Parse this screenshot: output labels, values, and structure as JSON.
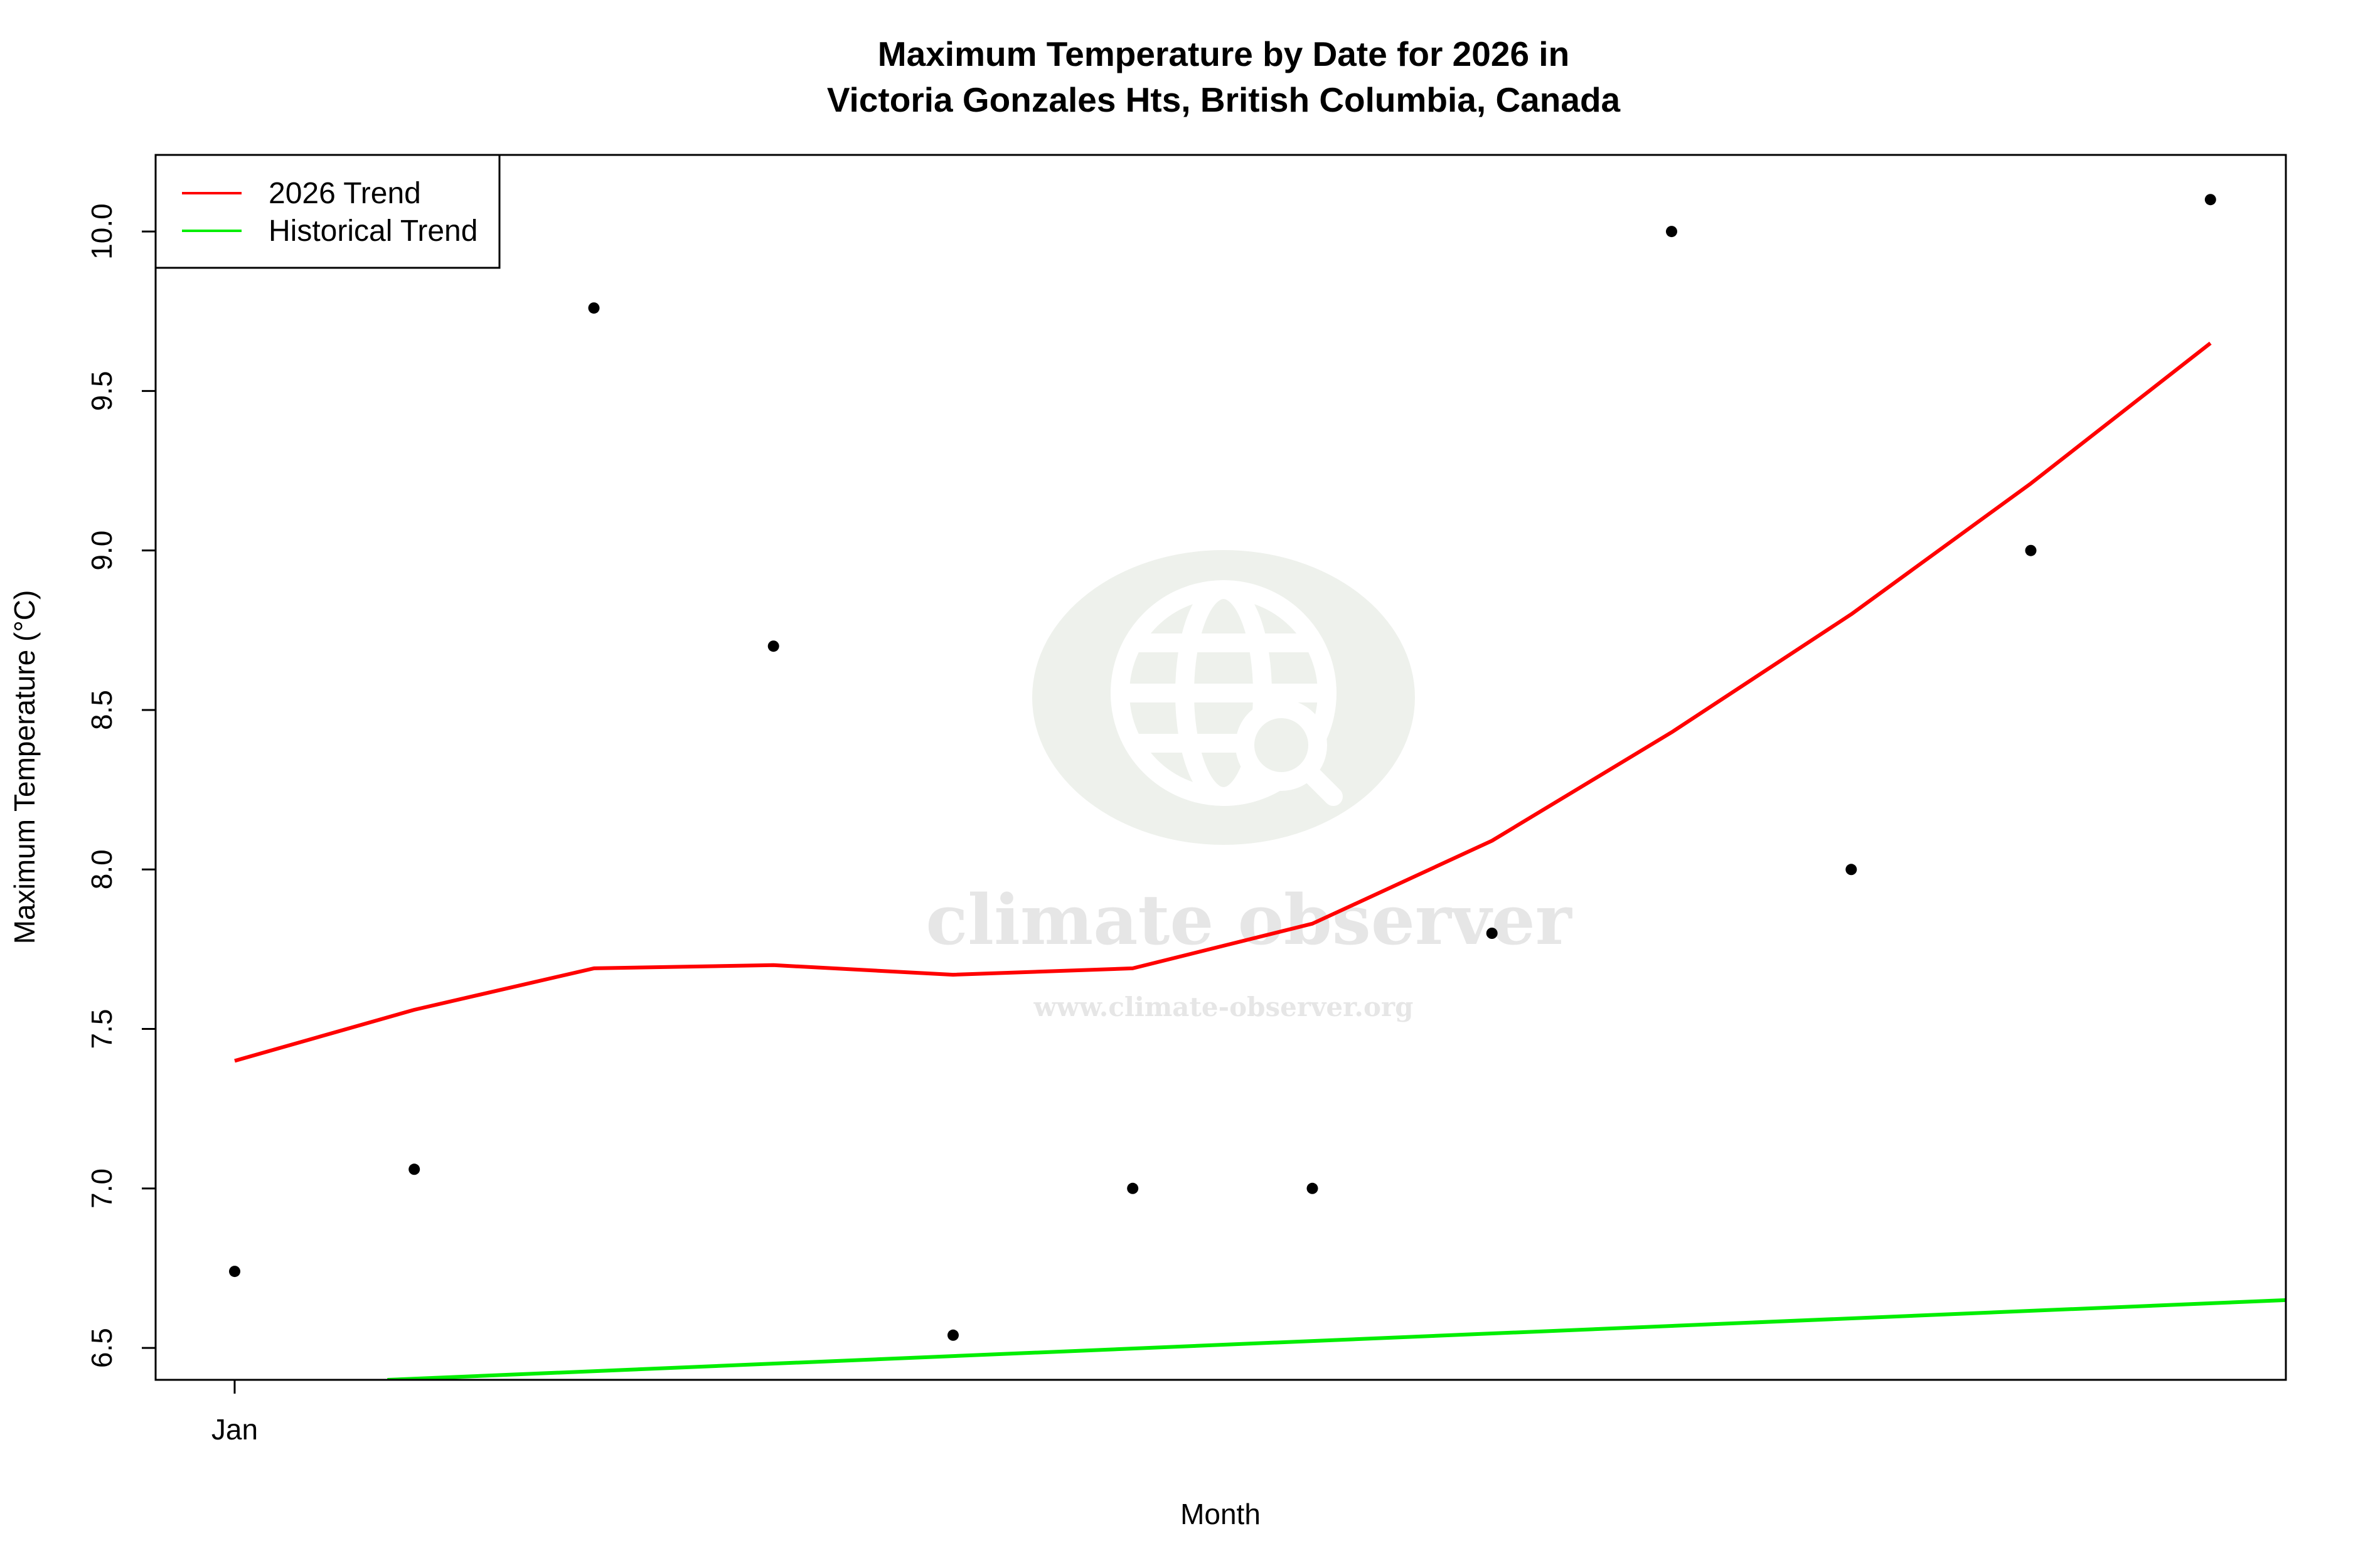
{
  "chart_data": {
    "type": "scatter",
    "title": [
      "Maximum Temperature by Date for 2026 in",
      "Victoria Gonzales Hts, British Columbia, Canada"
    ],
    "xlabel": "Month",
    "ylabel": "Maximum Temperature (°C)",
    "x_ticks": [
      {
        "x": 1,
        "label": "Jan"
      }
    ],
    "xlim": [
      0.56,
      12.42
    ],
    "ylim": [
      6.4,
      10.24
    ],
    "y_ticks": [
      6.5,
      7.0,
      7.5,
      8.0,
      8.5,
      9.0,
      9.5,
      10.0
    ],
    "y_tick_labels": [
      "6.5",
      "7.0",
      "7.5",
      "8.0",
      "8.5",
      "9.0",
      "9.5",
      "10.0"
    ],
    "grid": false,
    "legend_position": "top-left",
    "points": {
      "x": [
        1,
        2,
        3,
        4,
        5,
        6,
        7,
        8,
        9,
        10,
        11,
        12
      ],
      "y": [
        6.74,
        7.06,
        9.76,
        8.7,
        6.54,
        7.0,
        7.0,
        7.8,
        10.0,
        8.0,
        9.0,
        10.1
      ],
      "color": "#000000"
    },
    "series": [
      {
        "name": "2026 Trend",
        "color": "#ff0000",
        "x": [
          1,
          2,
          3,
          4,
          5,
          6,
          7,
          8,
          9,
          10,
          11,
          12
        ],
        "y": [
          7.4,
          7.56,
          7.69,
          7.7,
          7.67,
          7.69,
          7.83,
          8.09,
          8.43,
          8.8,
          9.21,
          9.65
        ]
      },
      {
        "name": "Historical Trend",
        "color": "#00ee00",
        "x": [
          1.85,
          12.42
        ],
        "y": [
          6.4,
          6.65
        ]
      }
    ]
  },
  "watermark": {
    "name": "climate observer",
    "url": "www.climate-observer.org",
    "icon": "globe-search-icon"
  }
}
